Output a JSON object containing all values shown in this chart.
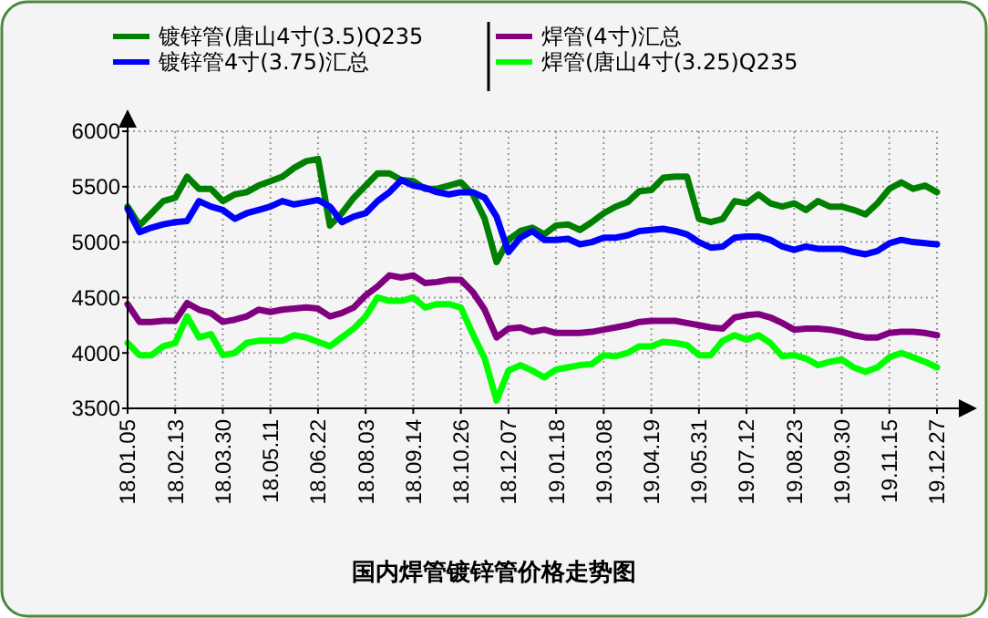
{
  "chart_data": {
    "type": "line",
    "title": "国内焊管镀锌管价格走势图",
    "categories": [
      "18.01.05",
      null,
      null,
      null,
      "18.02.13",
      null,
      null,
      null,
      "18.03.30",
      null,
      null,
      null,
      "18.05.11",
      null,
      null,
      null,
      "18.06.22",
      null,
      null,
      null,
      "18.08.03",
      null,
      null,
      null,
      "18.09.14",
      null,
      null,
      null,
      "18.10.26",
      null,
      null,
      null,
      "18.12.07",
      null,
      null,
      null,
      "19.01.18",
      null,
      null,
      null,
      "19.03.08",
      null,
      null,
      null,
      "19.04.19",
      null,
      null,
      null,
      "19.05.31",
      null,
      null,
      null,
      "19.07.12",
      null,
      null,
      null,
      "19.08.23",
      null,
      null,
      null,
      "19.09.30",
      null,
      null,
      null,
      "19.11.15",
      null,
      null,
      null,
      "19.12.27"
    ],
    "series": [
      {
        "name": "镀锌管(唐山4寸(3.5)Q235",
        "color": "#008000",
        "values": [
          5320,
          5150,
          5260,
          5370,
          5400,
          5590,
          5480,
          5480,
          5370,
          5430,
          5450,
          5510,
          5550,
          5590,
          5670,
          5730,
          5750,
          5150,
          5260,
          5400,
          5510,
          5620,
          5620,
          5560,
          5550,
          5480,
          5480,
          5510,
          5540,
          5430,
          5210,
          4820,
          5020,
          5100,
          5130,
          5070,
          5150,
          5160,
          5110,
          5180,
          5260,
          5320,
          5360,
          5460,
          5470,
          5580,
          5590,
          5590,
          5210,
          5180,
          5210,
          5370,
          5350,
          5430,
          5350,
          5320,
          5350,
          5290,
          5370,
          5320,
          5320,
          5290,
          5250,
          5350,
          5480,
          5540,
          5480,
          5510,
          5450
        ]
      },
      {
        "name": "镀锌管4寸(3.75)汇总",
        "color": "#0000ff",
        "values": [
          5300,
          5090,
          5130,
          5160,
          5180,
          5190,
          5370,
          5320,
          5290,
          5210,
          5260,
          5290,
          5320,
          5370,
          5340,
          5360,
          5380,
          5320,
          5180,
          5230,
          5260,
          5370,
          5450,
          5560,
          5510,
          5490,
          5450,
          5430,
          5450,
          5450,
          5400,
          5230,
          4910,
          5040,
          5100,
          5020,
          5020,
          5030,
          4980,
          5000,
          5040,
          5040,
          5060,
          5100,
          5110,
          5120,
          5100,
          5070,
          5000,
          4950,
          4960,
          5040,
          5050,
          5050,
          5020,
          4960,
          4930,
          4960,
          4940,
          4940,
          4940,
          4910,
          4890,
          4920,
          4990,
          5020,
          5000,
          4990,
          4980
        ]
      },
      {
        "name": "焊管(4寸)汇总",
        "color": "#800080",
        "values": [
          4440,
          4280,
          4280,
          4290,
          4290,
          4450,
          4390,
          4360,
          4280,
          4300,
          4330,
          4390,
          4370,
          4390,
          4400,
          4410,
          4400,
          4330,
          4360,
          4410,
          4520,
          4600,
          4700,
          4680,
          4700,
          4630,
          4640,
          4660,
          4660,
          4550,
          4390,
          4140,
          4220,
          4230,
          4190,
          4210,
          4180,
          4180,
          4180,
          4190,
          4210,
          4230,
          4250,
          4280,
          4290,
          4290,
          4290,
          4270,
          4250,
          4230,
          4220,
          4320,
          4340,
          4350,
          4320,
          4270,
          4210,
          4220,
          4220,
          4210,
          4190,
          4160,
          4140,
          4140,
          4180,
          4190,
          4190,
          4180,
          4160
        ]
      },
      {
        "name": "焊管(唐山4寸(3.25)Q235",
        "color": "#00ff00",
        "values": [
          4090,
          3980,
          3980,
          4060,
          4090,
          4330,
          4140,
          4170,
          3980,
          4000,
          4090,
          4110,
          4110,
          4110,
          4160,
          4140,
          4100,
          4060,
          4140,
          4220,
          4330,
          4500,
          4470,
          4470,
          4500,
          4410,
          4440,
          4440,
          4410,
          4170,
          3950,
          3570,
          3840,
          3890,
          3840,
          3780,
          3850,
          3870,
          3890,
          3900,
          3980,
          3970,
          4000,
          4060,
          4060,
          4100,
          4090,
          4070,
          3980,
          3980,
          4110,
          4160,
          4120,
          4160,
          4090,
          3970,
          3980,
          3950,
          3890,
          3920,
          3940,
          3870,
          3830,
          3870,
          3960,
          4000,
          3960,
          3920,
          3870
        ]
      }
    ],
    "ylim": [
      3500,
      6000
    ],
    "yticks": [
      3500,
      4000,
      4500,
      5000,
      5500,
      6000
    ],
    "grid": true,
    "legend": "top",
    "marker": "none",
    "line_style": "solid"
  }
}
